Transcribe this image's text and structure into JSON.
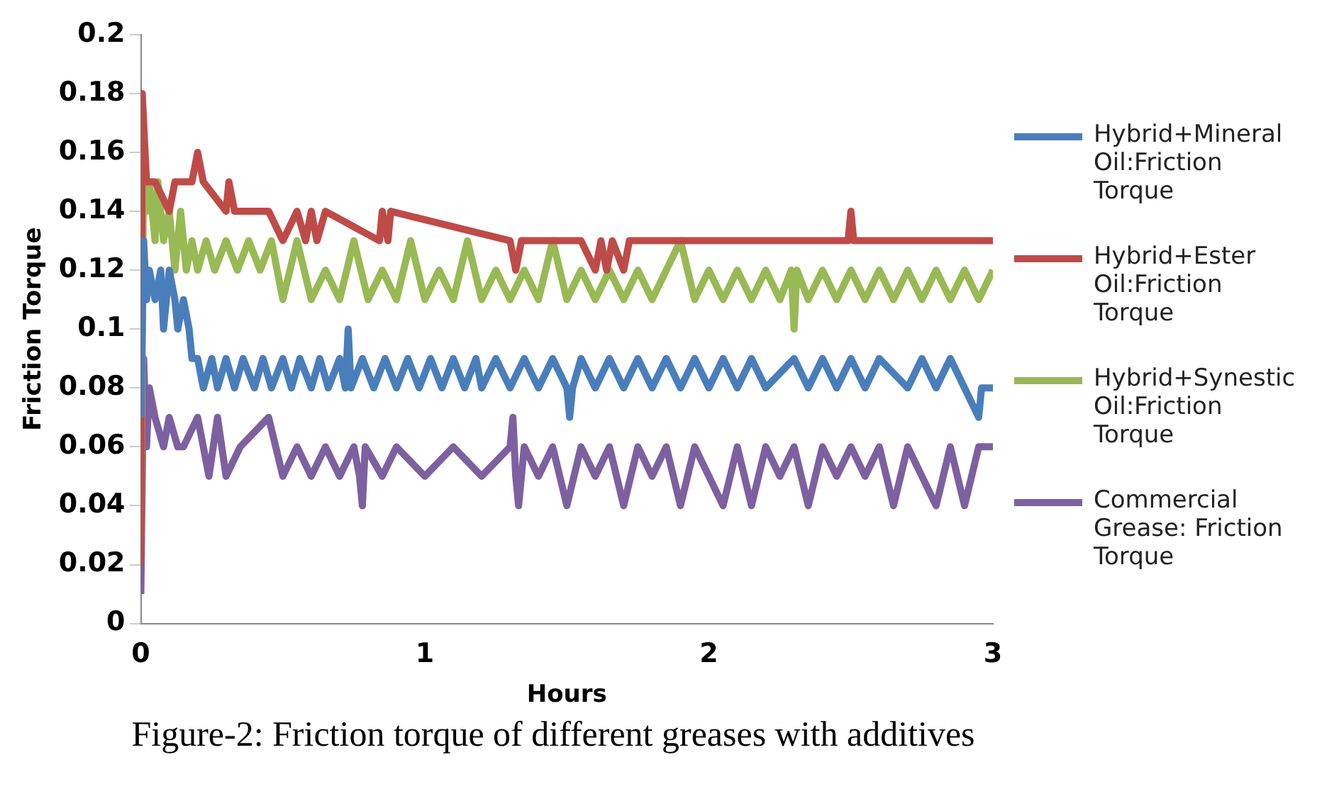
{
  "chart_data": {
    "type": "line",
    "xlabel": "Hours",
    "ylabel": "Friction Torque",
    "xlim": [
      0,
      3
    ],
    "xticks": [
      0,
      1,
      2,
      3
    ],
    "ylim": [
      0,
      0.2
    ],
    "yticks": [
      0,
      0.02,
      0.04,
      0.06,
      0.08,
      0.1,
      0.12,
      0.14,
      0.16,
      0.18,
      0.2
    ],
    "grid": false,
    "legend": "right",
    "marker": "none",
    "line_style": "solid",
    "annotations": [
      "Figure-2: Friction torque of different greases with additives"
    ],
    "series": [
      {
        "name": "Hybrid+Mineral Oil:Friction Torque",
        "color": "#4a7ebb",
        "x": [
          0,
          0.01,
          0.02,
          0.03,
          0.05,
          0.07,
          0.08,
          0.1,
          0.12,
          0.13,
          0.15,
          0.17,
          0.18,
          0.2,
          0.22,
          0.25,
          0.27,
          0.3,
          0.33,
          0.36,
          0.4,
          0.43,
          0.46,
          0.5,
          0.53,
          0.56,
          0.6,
          0.63,
          0.66,
          0.7,
          0.72,
          0.73,
          0.74,
          0.78,
          0.82,
          0.86,
          0.9,
          0.94,
          0.98,
          1.02,
          1.06,
          1.1,
          1.14,
          1.18,
          1.2,
          1.25,
          1.3,
          1.35,
          1.4,
          1.45,
          1.5,
          1.51,
          1.52,
          1.55,
          1.6,
          1.65,
          1.7,
          1.75,
          1.8,
          1.85,
          1.9,
          1.95,
          2.0,
          2.05,
          2.1,
          2.15,
          2.2,
          2.3,
          2.35,
          2.4,
          2.45,
          2.5,
          2.55,
          2.6,
          2.7,
          2.75,
          2.8,
          2.85,
          2.9,
          2.95,
          2.96,
          3
        ],
        "values": [
          0.07,
          0.13,
          0.11,
          0.12,
          0.11,
          0.12,
          0.1,
          0.12,
          0.11,
          0.1,
          0.11,
          0.1,
          0.09,
          0.09,
          0.08,
          0.09,
          0.08,
          0.09,
          0.08,
          0.09,
          0.08,
          0.09,
          0.08,
          0.09,
          0.08,
          0.09,
          0.08,
          0.09,
          0.08,
          0.09,
          0.08,
          0.1,
          0.08,
          0.09,
          0.08,
          0.09,
          0.08,
          0.09,
          0.08,
          0.09,
          0.08,
          0.09,
          0.08,
          0.09,
          0.08,
          0.09,
          0.08,
          0.09,
          0.08,
          0.09,
          0.08,
          0.07,
          0.08,
          0.09,
          0.08,
          0.09,
          0.08,
          0.09,
          0.08,
          0.09,
          0.08,
          0.09,
          0.08,
          0.09,
          0.08,
          0.09,
          0.08,
          0.09,
          0.08,
          0.09,
          0.08,
          0.09,
          0.08,
          0.09,
          0.08,
          0.09,
          0.08,
          0.09,
          0.08,
          0.07,
          0.08,
          0.08
        ]
      },
      {
        "name": "Hybrid+Ester Oil:Friction Torque",
        "color": "#be4b48",
        "x": [
          0,
          0.005,
          0.01,
          0.02,
          0.05,
          0.1,
          0.12,
          0.18,
          0.2,
          0.22,
          0.3,
          0.31,
          0.33,
          0.45,
          0.5,
          0.55,
          0.58,
          0.6,
          0.62,
          0.65,
          0.84,
          0.85,
          0.87,
          0.88,
          1.3,
          1.32,
          1.34,
          1.55,
          1.6,
          1.62,
          1.64,
          1.66,
          1.7,
          1.72,
          1.74,
          2.49,
          2.5,
          2.51,
          2.75,
          3
        ],
        "values": [
          0.02,
          0.18,
          0.17,
          0.15,
          0.15,
          0.14,
          0.15,
          0.15,
          0.16,
          0.15,
          0.14,
          0.15,
          0.14,
          0.14,
          0.13,
          0.14,
          0.13,
          0.14,
          0.13,
          0.14,
          0.13,
          0.14,
          0.13,
          0.14,
          0.13,
          0.12,
          0.13,
          0.13,
          0.12,
          0.13,
          0.12,
          0.13,
          0.12,
          0.13,
          0.13,
          0.13,
          0.14,
          0.13,
          0.13,
          0.13
        ]
      },
      {
        "name": "Hybrid+Synestic Oil:Friction Torque",
        "color": "#98b954",
        "x": [
          0,
          0.01,
          0.02,
          0.03,
          0.05,
          0.06,
          0.08,
          0.1,
          0.12,
          0.14,
          0.16,
          0.18,
          0.2,
          0.23,
          0.26,
          0.3,
          0.34,
          0.38,
          0.42,
          0.46,
          0.5,
          0.55,
          0.6,
          0.65,
          0.7,
          0.75,
          0.8,
          0.85,
          0.9,
          0.95,
          1.0,
          1.05,
          1.1,
          1.15,
          1.2,
          1.25,
          1.3,
          1.35,
          1.4,
          1.45,
          1.5,
          1.55,
          1.6,
          1.65,
          1.7,
          1.75,
          1.8,
          1.85,
          1.9,
          1.95,
          2.0,
          2.05,
          2.1,
          2.15,
          2.2,
          2.25,
          2.29,
          2.3,
          2.31,
          2.35,
          2.4,
          2.45,
          2.5,
          2.55,
          2.6,
          2.65,
          2.7,
          2.75,
          2.8,
          2.85,
          2.9,
          2.95,
          3
        ],
        "values": [
          0.03,
          0.16,
          0.14,
          0.15,
          0.13,
          0.15,
          0.13,
          0.14,
          0.12,
          0.14,
          0.12,
          0.13,
          0.12,
          0.13,
          0.12,
          0.13,
          0.12,
          0.13,
          0.12,
          0.13,
          0.11,
          0.13,
          0.11,
          0.12,
          0.11,
          0.13,
          0.11,
          0.12,
          0.11,
          0.13,
          0.11,
          0.12,
          0.11,
          0.13,
          0.11,
          0.12,
          0.11,
          0.12,
          0.11,
          0.13,
          0.11,
          0.12,
          0.11,
          0.12,
          0.11,
          0.12,
          0.11,
          0.12,
          0.13,
          0.11,
          0.12,
          0.11,
          0.12,
          0.11,
          0.12,
          0.11,
          0.12,
          0.1,
          0.12,
          0.11,
          0.12,
          0.11,
          0.12,
          0.11,
          0.12,
          0.11,
          0.12,
          0.11,
          0.12,
          0.11,
          0.12,
          0.11,
          0.12
        ]
      },
      {
        "name": "Commercial Grease: Friction Torque",
        "color": "#7d60a0",
        "x": [
          0,
          0.01,
          0.02,
          0.03,
          0.05,
          0.08,
          0.1,
          0.13,
          0.15,
          0.2,
          0.22,
          0.24,
          0.27,
          0.3,
          0.35,
          0.45,
          0.5,
          0.55,
          0.6,
          0.65,
          0.7,
          0.75,
          0.77,
          0.78,
          0.79,
          0.85,
          0.9,
          1.0,
          1.1,
          1.2,
          1.3,
          1.31,
          1.32,
          1.33,
          1.35,
          1.4,
          1.45,
          1.5,
          1.55,
          1.6,
          1.65,
          1.7,
          1.75,
          1.8,
          1.85,
          1.9,
          1.95,
          2.0,
          2.05,
          2.1,
          2.15,
          2.2,
          2.25,
          2.3,
          2.35,
          2.4,
          2.45,
          2.5,
          2.55,
          2.6,
          2.65,
          2.7,
          2.75,
          2.8,
          2.85,
          2.9,
          2.95,
          3
        ],
        "values": [
          0.01,
          0.09,
          0.06,
          0.08,
          0.07,
          0.06,
          0.07,
          0.06,
          0.06,
          0.07,
          0.06,
          0.05,
          0.07,
          0.05,
          0.06,
          0.07,
          0.05,
          0.06,
          0.05,
          0.06,
          0.05,
          0.06,
          0.05,
          0.04,
          0.06,
          0.05,
          0.06,
          0.05,
          0.06,
          0.05,
          0.06,
          0.07,
          0.05,
          0.04,
          0.06,
          0.05,
          0.06,
          0.04,
          0.06,
          0.05,
          0.06,
          0.04,
          0.06,
          0.05,
          0.06,
          0.04,
          0.06,
          0.05,
          0.04,
          0.06,
          0.04,
          0.06,
          0.05,
          0.06,
          0.04,
          0.06,
          0.05,
          0.06,
          0.05,
          0.06,
          0.04,
          0.06,
          0.05,
          0.04,
          0.06,
          0.04,
          0.06,
          0.06
        ]
      }
    ]
  }
}
